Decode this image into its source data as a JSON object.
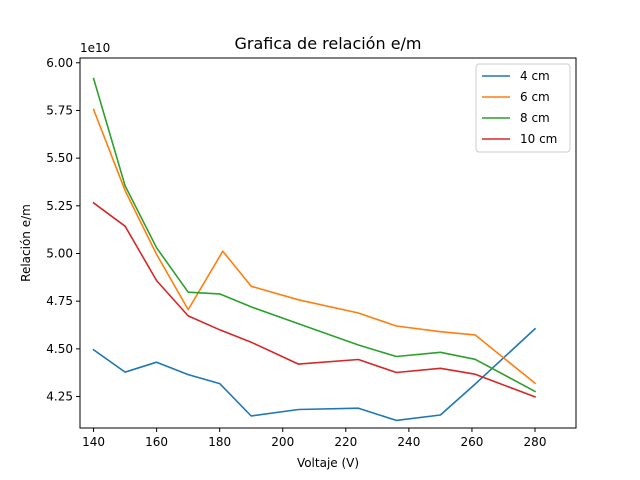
{
  "chart_data": {
    "type": "line",
    "title": "Grafica de relación e/m",
    "xlabel": "Voltaje (V)",
    "ylabel": "Relación e/m",
    "y_multiplier_label": "1e10",
    "xlim": [
      135.7,
      293.0
    ],
    "ylim": [
      4.085,
      6.025
    ],
    "x_ticks": [
      140,
      160,
      180,
      200,
      220,
      240,
      260,
      280
    ],
    "x_tick_labels": [
      "140",
      "160",
      "180",
      "200",
      "220",
      "240",
      "260",
      "280"
    ],
    "y_ticks": [
      4.25,
      4.5,
      4.75,
      5.0,
      5.25,
      5.5,
      5.75,
      6.0
    ],
    "y_tick_labels": [
      "4.25",
      "4.50",
      "4.75",
      "5.00",
      "5.25",
      "5.50",
      "5.75",
      "6.00"
    ],
    "grid": false,
    "legend_position": "top-right",
    "series": [
      {
        "name": "4 cm",
        "color": "#1f77b4",
        "x": [
          140,
          150,
          160,
          170,
          180,
          190,
          205,
          224,
          236,
          250,
          261,
          280
        ],
        "y": [
          4.495,
          4.378,
          4.43,
          4.365,
          4.318,
          4.148,
          4.182,
          4.189,
          4.125,
          4.153,
          4.315,
          4.605
        ]
      },
      {
        "name": "6 cm",
        "color": "#ff7f0e",
        "x": [
          140,
          150,
          160,
          170,
          181,
          190,
          205,
          224,
          236,
          250,
          261,
          280
        ],
        "y": [
          5.755,
          5.33,
          4.995,
          4.706,
          5.012,
          4.828,
          4.757,
          4.688,
          4.62,
          4.59,
          4.573,
          4.32
        ]
      },
      {
        "name": "8 cm",
        "color": "#2ca02c",
        "x": [
          140,
          150,
          160,
          170,
          180,
          190,
          205,
          224,
          236,
          250,
          261,
          280
        ],
        "y": [
          5.917,
          5.355,
          5.03,
          4.797,
          4.788,
          4.72,
          4.632,
          4.52,
          4.46,
          4.482,
          4.445,
          4.277
        ]
      },
      {
        "name": "10 cm",
        "color": "#d62728",
        "x": [
          140,
          150,
          160,
          170,
          180,
          190,
          205,
          224,
          236,
          250,
          261,
          280
        ],
        "y": [
          5.265,
          5.143,
          4.858,
          4.673,
          4.6,
          4.535,
          4.42,
          4.444,
          4.376,
          4.398,
          4.367,
          4.248
        ]
      }
    ]
  }
}
